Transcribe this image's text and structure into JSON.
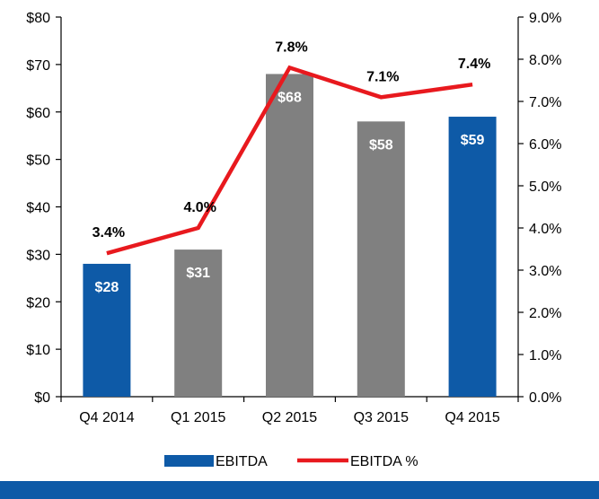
{
  "chart_data": {
    "type": "bar",
    "categories": [
      "Q4 2014",
      "Q1 2015",
      "Q2 2015",
      "Q3 2015",
      "Q4 2015"
    ],
    "series": [
      {
        "name": "EBITDA",
        "type": "bar",
        "axis": "left",
        "values": [
          28,
          31,
          68,
          58,
          59
        ],
        "labels": [
          "$28",
          "$31",
          "$68",
          "$58",
          "$59"
        ],
        "colors": [
          "#0e5aa7",
          "#808080",
          "#808080",
          "#808080",
          "#0e5aa7"
        ]
      },
      {
        "name": "EBITDA %",
        "type": "line",
        "axis": "right",
        "values": [
          3.4,
          4.0,
          7.8,
          7.1,
          7.4
        ],
        "labels": [
          "3.4%",
          "4.0%",
          "7.8%",
          "7.1%",
          "7.4%"
        ],
        "color": "#e8191e"
      }
    ],
    "y_left": {
      "ylim": [
        0,
        80
      ],
      "ticks": [
        0,
        10,
        20,
        30,
        40,
        50,
        60,
        70,
        80
      ],
      "tick_labels": [
        "$0",
        "$10",
        "$20",
        "$30",
        "$40",
        "$50",
        "$60",
        "$70",
        "$80"
      ]
    },
    "y_right": {
      "ylim": [
        0,
        9
      ],
      "ticks": [
        0,
        1,
        2,
        3,
        4,
        5,
        6,
        7,
        8,
        9
      ],
      "tick_labels": [
        "0.0%",
        "1.0%",
        "2.0%",
        "3.0%",
        "4.0%",
        "5.0%",
        "6.0%",
        "7.0%",
        "8.0%",
        "9.0%"
      ]
    },
    "legend": {
      "placement": "bottom",
      "items": [
        {
          "label": "EBITDA",
          "kind": "bar",
          "color": "#0e5aa7"
        },
        {
          "label": "EBITDA %",
          "kind": "line",
          "color": "#e8191e"
        }
      ]
    },
    "grid": false
  },
  "footer": {
    "color": "#0e5aa7"
  }
}
